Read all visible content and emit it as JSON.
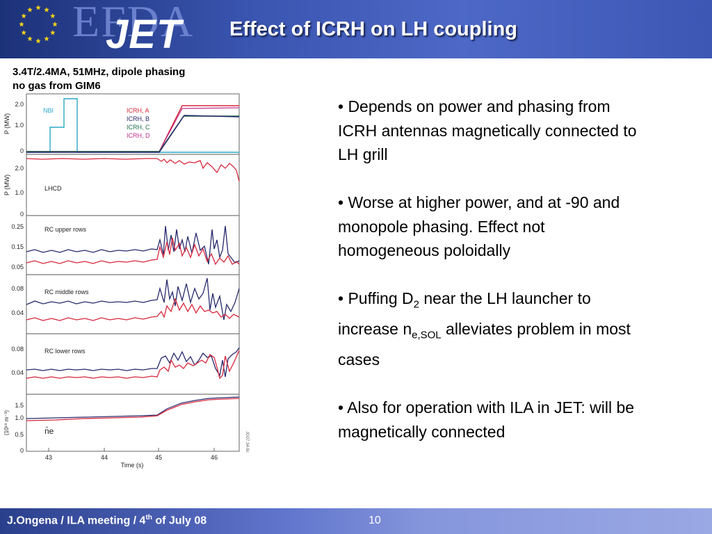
{
  "header": {
    "logo_efda": "EFDA",
    "logo_jet": "JET",
    "title": "Effect of ICRH on LH coupling"
  },
  "subtitle": {
    "line1": "3.4T/2.4MA, 51MHz, dipole phasing",
    "line2": "no gas from GIM6"
  },
  "figure": {
    "code": "JG07.34-8c",
    "xlabel": "Time (s)",
    "xticks": [
      "43",
      "44",
      "45",
      "46"
    ],
    "panels": [
      {
        "ylabel": "P (MW)",
        "yticks": [
          "2.0",
          "1.0",
          "0"
        ],
        "labels": [
          "NBI",
          "ICRH, A",
          "ICRH, B",
          "ICRH, C",
          "ICRH, D"
        ]
      },
      {
        "ylabel": "P (MW)",
        "yticks": [
          "2.0",
          "1.0",
          "0"
        ],
        "labels": [
          "LHCD"
        ]
      },
      {
        "ylabel": "",
        "yticks": [
          "0.25",
          "0.15",
          "0.05"
        ],
        "labels": [
          "RC upper rows"
        ]
      },
      {
        "ylabel": "",
        "yticks": [
          "0.08",
          "0.04"
        ],
        "labels": [
          "RC middle rows"
        ]
      },
      {
        "ylabel": "",
        "yticks": [
          "0.08",
          "0.04"
        ],
        "labels": [
          "RC lower rows"
        ]
      },
      {
        "ylabel": "(10¹⁹ m⁻³)",
        "yticks": [
          "1.5",
          "1.0",
          "0.5",
          "0"
        ],
        "labels": [
          "n̄e"
        ]
      }
    ],
    "colors": {
      "red": "#d6263c",
      "navy": "#27296b",
      "green": "#1f6f4a",
      "cyan": "#29a8c6"
    }
  },
  "bullets": [
    "• Depends on power and phasing from ICRH antennas magnetically connected to LH grill",
    "• Worse at higher power, and at -90 and monopole phasing. Effect not homogeneous poloidally",
    "• Puffing D2 near the LH launcher to increase ne,SOL alleviates problem in most cases",
    "•  Also for operation with ILA in JET: will be magnetically connected"
  ],
  "bullet3_parts": {
    "a": "• Puffing D",
    "sub2": "2",
    "b": " near the LH launcher to increase n",
    "sub_esol": "e,SOL",
    "c": " alleviates problem in most cases"
  },
  "footer": {
    "author_pre": "J.Ongena  / ILA meeting / 4",
    "author_sup": "th",
    "author_post": " of July 08",
    "page": "10"
  }
}
